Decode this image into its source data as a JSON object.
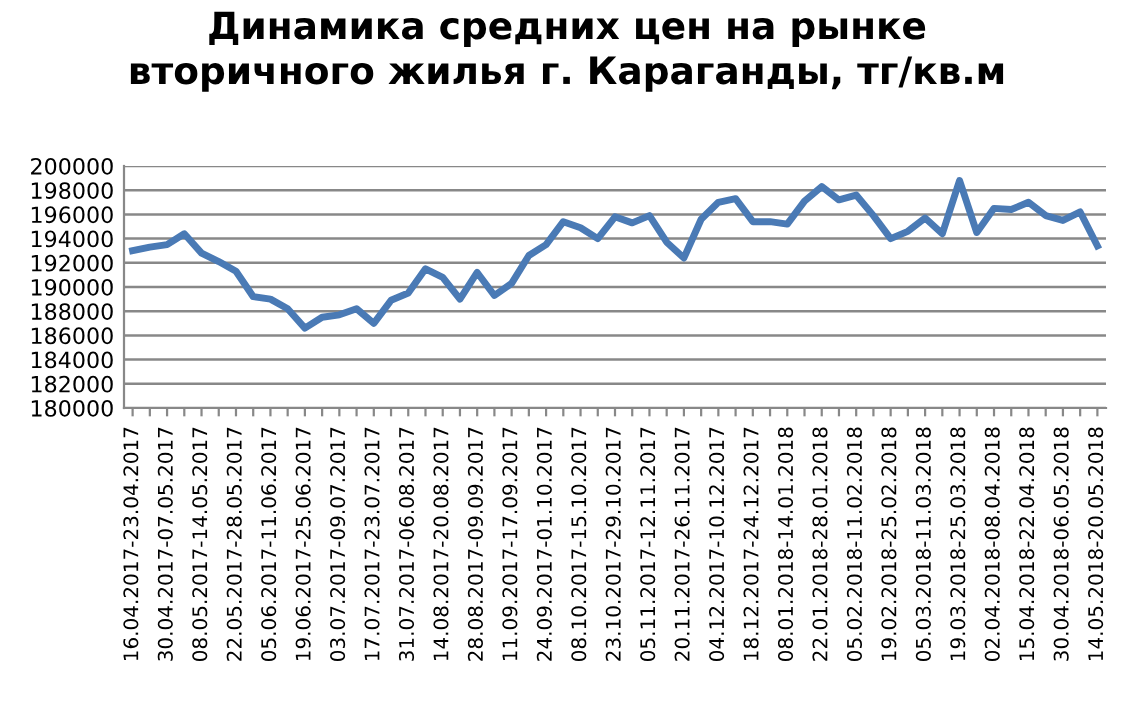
{
  "chart_data": {
    "type": "line",
    "title": "Динамика средних цен на рынке\nвторичного жилья г. Караганды, тг/кв.м",
    "categories": [
      "16.04.2017-23.04.2017",
      null,
      "30.04.2017-07.05.2017",
      null,
      "08.05.2017-14.05.2017",
      null,
      "22.05.2017-28.05.2017",
      null,
      "05.06.2017-11.06.2017",
      null,
      "19.06.2017-25.06.2017",
      null,
      "03.07.2017-09.07.2017",
      null,
      "17.07.2017-23.07.2017",
      null,
      "31.07.2017-06.08.2017",
      null,
      "14.08.2017-20.08.2017",
      null,
      "28.08.2017-09.09.2017",
      null,
      "11.09.2017-17.09.2017",
      null,
      "24.09.2017-01.10.2017",
      null,
      "08.10.2017-15.10.2017",
      null,
      "23.10.2017-29.10.2017",
      null,
      "05.11.2017-12.11.2017",
      null,
      "20.11.2017-26.11.2017",
      null,
      "04.12.2017-10.12.2017",
      null,
      "18.12.2017-24.12.2017",
      null,
      "08.01.2018-14.01.2018",
      null,
      "22.01.2018-28.01.2018",
      null,
      "05.02.2018-11.02.2018",
      null,
      "19.02.2018-25.02.2018",
      null,
      "05.03.2018-11.03.2018",
      null,
      "19.03.2018-25.03.2018",
      null,
      "02.04.2018-08.04.2018",
      null,
      "15.04.2018-22.04.2018",
      null,
      "30.04.2018-06.05.2018",
      null,
      "14.05.2018-20.05.2018"
    ],
    "series": [
      {
        "color": "#4a7ab5",
        "values": [
          193000,
          193300,
          193500,
          194400,
          192800,
          192100,
          191300,
          189200,
          189000,
          188200,
          186600,
          187500,
          187700,
          188200,
          187000,
          188900,
          189500,
          191500,
          190800,
          189000,
          191200,
          189300,
          190300,
          192600,
          193500,
          195400,
          194900,
          194000,
          195800,
          195300,
          195900,
          193700,
          192400,
          195600,
          197000,
          197300,
          195400,
          195400,
          195200,
          197100,
          198300,
          197200,
          197600,
          195900,
          194000,
          194600,
          195700,
          194400,
          198800,
          194500,
          196500,
          196400,
          197000,
          195900,
          195500,
          196200,
          193400
        ]
      }
    ],
    "ylim": [
      180000,
      200000
    ],
    "yticks": [
      180000,
      182000,
      184000,
      186000,
      188000,
      190000,
      192000,
      194000,
      196000,
      198000,
      200000
    ],
    "grid": "y",
    "legend": false,
    "marker": "none",
    "line_style": "solid"
  }
}
